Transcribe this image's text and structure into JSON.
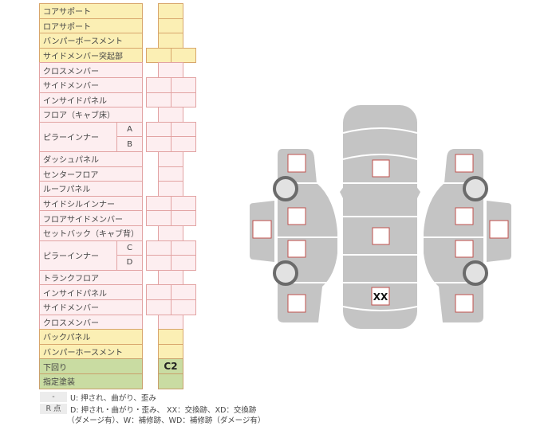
{
  "colors": {
    "yellow": "#fbefb4",
    "pink": "#fdeef0",
    "green": "#c9dca2",
    "body": "#c4c4c4",
    "box_border": "#c0504d"
  },
  "rows": [
    {
      "label": "コアサポート",
      "color": "yellow",
      "cells": 1,
      "value": ""
    },
    {
      "label": "ロアサポート",
      "color": "yellow",
      "cells": 1,
      "value": ""
    },
    {
      "label": "バンパーボースメント",
      "color": "yellow",
      "cells": 1,
      "value": ""
    },
    {
      "label": "サイドメンバー突起部",
      "color": "yellow",
      "cells": 2,
      "value": ""
    },
    {
      "label": "クロスメンバー",
      "color": "pink",
      "cells": 1,
      "value": ""
    },
    {
      "label": "サイドメンバー",
      "color": "pink",
      "cells": 2,
      "value": ""
    },
    {
      "label": "インサイドパネル",
      "color": "pink",
      "cells": 2,
      "value": ""
    },
    {
      "label": "フロア（キャブ床）",
      "color": "pink",
      "cells": 1,
      "value": ""
    },
    {
      "label": "ピラーインナー",
      "sub": "A",
      "color": "pink",
      "cells": 2,
      "value": ""
    },
    {
      "label": "ピラーインナー",
      "sub": "B",
      "color": "pink",
      "cells": 2,
      "value": "",
      "cont": true
    },
    {
      "label": "ダッシュパネル",
      "color": "pink",
      "cells": 1,
      "value": ""
    },
    {
      "label": "センターフロア",
      "color": "pink",
      "cells": 1,
      "value": ""
    },
    {
      "label": "ルーフパネル",
      "color": "pink",
      "cells": 1,
      "value": ""
    },
    {
      "label": "サイドシルインナー",
      "color": "pink",
      "cells": 2,
      "value": ""
    },
    {
      "label": "フロアサイドメンバー",
      "color": "pink",
      "cells": 2,
      "value": ""
    },
    {
      "label": "セットバック（キャブ背）",
      "color": "pink",
      "cells": 1,
      "value": ""
    },
    {
      "label": "ピラーインナー",
      "sub": "C",
      "color": "pink",
      "cells": 2,
      "value": ""
    },
    {
      "label": "ピラーインナー",
      "sub": "D",
      "color": "pink",
      "cells": 2,
      "value": "",
      "cont": true
    },
    {
      "label": "トランクフロア",
      "color": "pink",
      "cells": 1,
      "value": ""
    },
    {
      "label": "インサイドパネル",
      "color": "pink",
      "cells": 2,
      "value": ""
    },
    {
      "label": "サイドメンバー",
      "color": "pink",
      "cells": 2,
      "value": ""
    },
    {
      "label": "クロスメンバー",
      "color": "pink",
      "cells": 1,
      "value": ""
    },
    {
      "label": "バックパネル",
      "color": "yellow",
      "cells": 1,
      "value": ""
    },
    {
      "label": "バンパーホースメント",
      "color": "yellow",
      "cells": 1,
      "value": ""
    },
    {
      "label": "下回り",
      "color": "green",
      "cells": 1,
      "value": "C2"
    },
    {
      "label": "指定塗装",
      "color": "green",
      "cells": 1,
      "value": ""
    }
  ],
  "legend": {
    "key1": "-",
    "text1": "U: 押され、曲がり、歪み",
    "key2": "R 点",
    "text2": "D: 押され・曲がり・歪み、 XX：交換跡、XD：交換跡",
    "text3": "（ダメージ有）、W：補修跡、WD：補修跡（ダメージ有）"
  },
  "diagram": {
    "roof_rear_mark": "XX"
  }
}
